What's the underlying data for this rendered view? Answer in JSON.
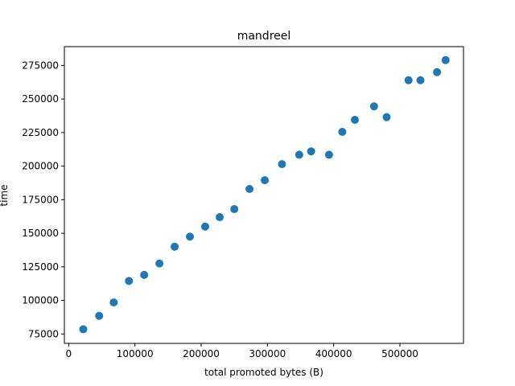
{
  "chart_data": {
    "type": "scatter",
    "title": "mandreel",
    "xlabel": "total promoted bytes (B)",
    "ylabel": "time",
    "xlim": [
      -6500,
      596000
    ],
    "ylim": [
      68000,
      289000
    ],
    "xticks": [
      0,
      100000,
      200000,
      300000,
      400000,
      500000
    ],
    "yticks": [
      75000,
      100000,
      125000,
      150000,
      175000,
      200000,
      225000,
      250000,
      275000
    ],
    "grid": false,
    "legend": "none",
    "color": "#1f77b4",
    "points": [
      {
        "x": 22000,
        "y": 78500
      },
      {
        "x": 46000,
        "y": 88500
      },
      {
        "x": 68000,
        "y": 98500
      },
      {
        "x": 91000,
        "y": 114500
      },
      {
        "x": 114000,
        "y": 119000
      },
      {
        "x": 137000,
        "y": 127500
      },
      {
        "x": 160000,
        "y": 140000
      },
      {
        "x": 183000,
        "y": 147500
      },
      {
        "x": 206000,
        "y": 155000
      },
      {
        "x": 228000,
        "y": 162000
      },
      {
        "x": 250000,
        "y": 168000
      },
      {
        "x": 273000,
        "y": 183000
      },
      {
        "x": 296000,
        "y": 189500
      },
      {
        "x": 322000,
        "y": 201500
      },
      {
        "x": 348000,
        "y": 208500
      },
      {
        "x": 366000,
        "y": 211000
      },
      {
        "x": 393000,
        "y": 208500
      },
      {
        "x": 413000,
        "y": 225500
      },
      {
        "x": 432000,
        "y": 234500
      },
      {
        "x": 461000,
        "y": 244500
      },
      {
        "x": 480000,
        "y": 236500
      },
      {
        "x": 513000,
        "y": 264000
      },
      {
        "x": 531000,
        "y": 264000
      },
      {
        "x": 556000,
        "y": 270000
      },
      {
        "x": 569000,
        "y": 279000
      }
    ]
  }
}
